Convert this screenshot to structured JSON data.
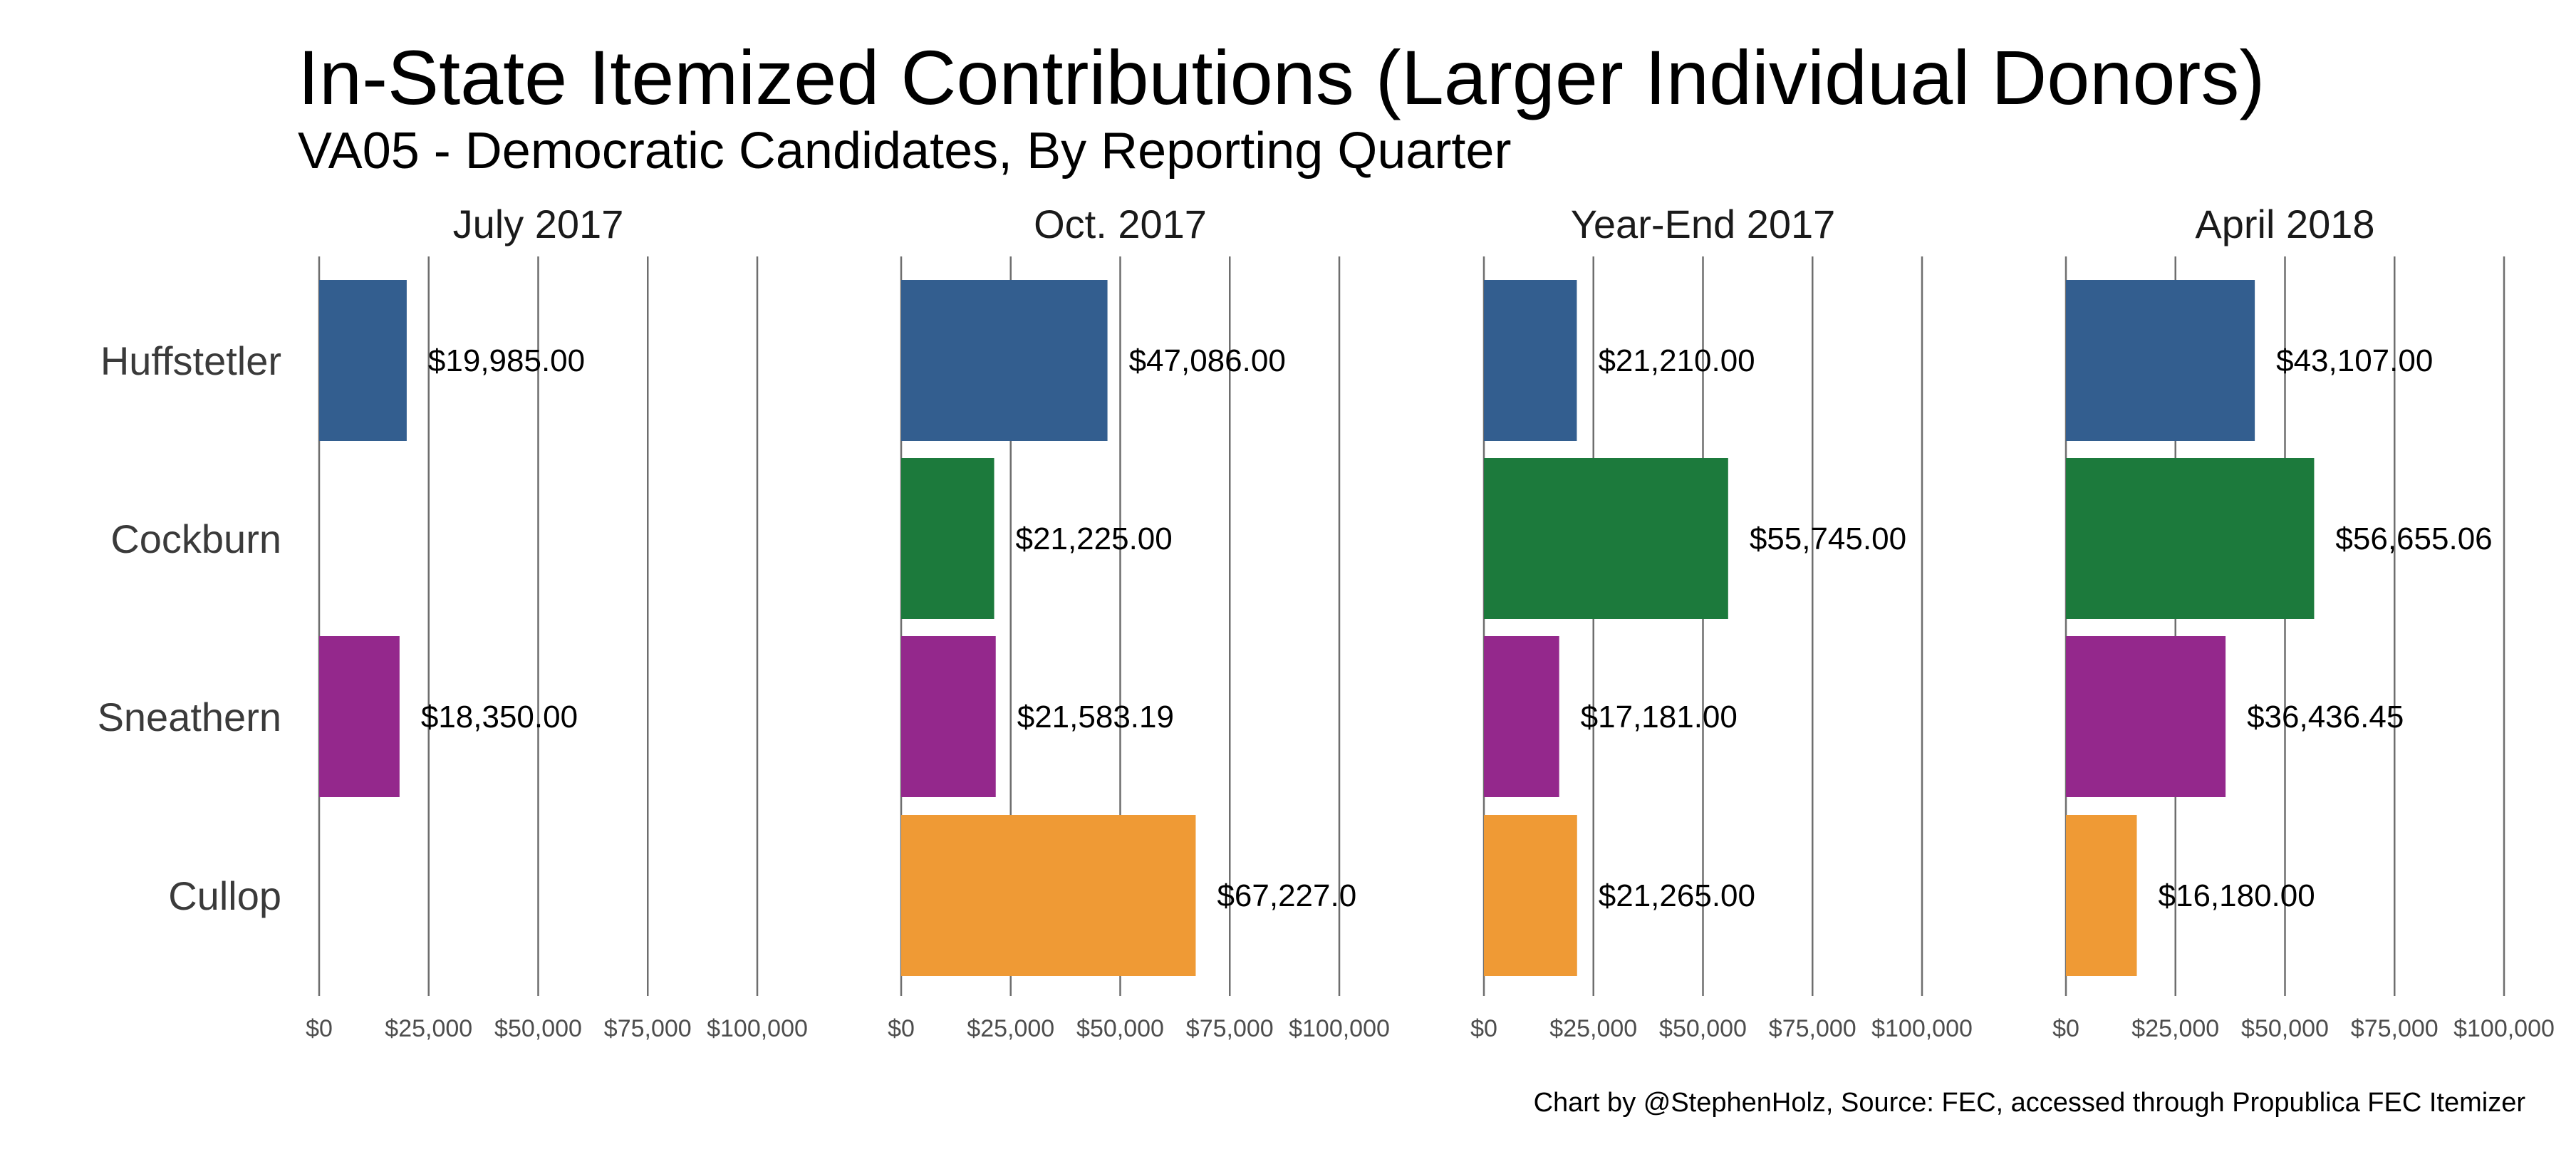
{
  "chart_data": {
    "type": "bar",
    "orientation": "horizontal",
    "title": "In-State Itemized Contributions (Larger Individual Donors)",
    "subtitle": "VA05 - Democratic Candidates, By Reporting Quarter",
    "caption": "Chart by @StephenHolz, Source: FEC, accessed through Propublica FEC Itemizer",
    "categories": [
      "Huffstetler",
      "Cockburn",
      "Sneathern",
      "Cullop"
    ],
    "colors": {
      "Huffstetler": "#335e8f",
      "Cockburn": "#1c7a3c",
      "Sneathern": "#94288c",
      "Cullop": "#ef9a35"
    },
    "xlim": [
      0,
      100000
    ],
    "ticks": [
      0,
      25000,
      50000,
      75000,
      100000
    ],
    "tick_labels": [
      "$0",
      "$25,000",
      "$50,000",
      "$75,000",
      "$100,000"
    ],
    "grid": true,
    "legend": "none",
    "facets": [
      {
        "title": "July 2017",
        "bars": [
          {
            "category": "Huffstetler",
            "value": 19985,
            "label": "$19,985.00"
          },
          {
            "category": "Sneathern",
            "value": 18350,
            "label": "$18,350.00"
          }
        ]
      },
      {
        "title": "Oct. 2017",
        "bars": [
          {
            "category": "Huffstetler",
            "value": 47086,
            "label": "$47,086.00"
          },
          {
            "category": "Cockburn",
            "value": 21225,
            "label": "$21,225.00"
          },
          {
            "category": "Sneathern",
            "value": 21583.19,
            "label": "$21,583.19"
          },
          {
            "category": "Cullop",
            "value": 67227,
            "label": "$67,227.0"
          }
        ]
      },
      {
        "title": "Year-End 2017",
        "bars": [
          {
            "category": "Huffstetler",
            "value": 21210,
            "label": "$21,210.00"
          },
          {
            "category": "Cockburn",
            "value": 55745,
            "label": "$55,745.00"
          },
          {
            "category": "Sneathern",
            "value": 17181,
            "label": "$17,181.00"
          },
          {
            "category": "Cullop",
            "value": 21265,
            "label": "$21,265.00"
          }
        ]
      },
      {
        "title": "April 2018",
        "bars": [
          {
            "category": "Huffstetler",
            "value": 43107,
            "label": "$43,107.00"
          },
          {
            "category": "Cockburn",
            "value": 56655.06,
            "label": "$56,655.06"
          },
          {
            "category": "Sneathern",
            "value": 36436.45,
            "label": "$36,436.45"
          },
          {
            "category": "Cullop",
            "value": 16180,
            "label": "$16,180.00"
          }
        ]
      }
    ]
  }
}
